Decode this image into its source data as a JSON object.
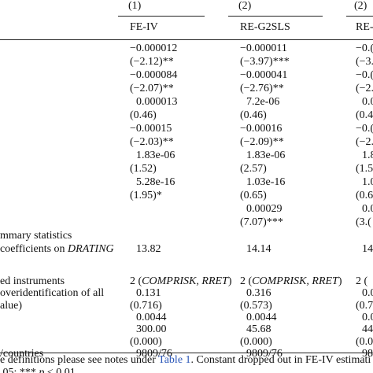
{
  "table": {
    "column_numbers": [
      "(1)",
      "(2)",
      "(2)"
    ],
    "column_names": [
      "FE-IV",
      "RE-G2SLS",
      "RE-"
    ],
    "rows": [
      [
        "",
        "−0.000012",
        "−0.000011",
        "−0.("
      ],
      [
        "",
        "(−2.12)**",
        "(−3.97)***",
        "(−3."
      ],
      [
        "",
        "−0.000084",
        "−0.000041",
        "−0.("
      ],
      [
        "",
        "(−2.07)**",
        "(−2.76)**",
        "(−2."
      ],
      [
        "",
        "0.000013",
        "7.2e-06",
        "0.0"
      ],
      [
        "",
        "(0.46)",
        "(0.46)",
        "(0.4"
      ],
      [
        "",
        "−0.00015",
        "−0.00016",
        "−0.("
      ],
      [
        "",
        "(−2.03)**",
        "(−2.09)**",
        "(−2."
      ],
      [
        "",
        "1.83e-06",
        "1.83e-06",
        "1.8"
      ],
      [
        "",
        "(1.52)",
        "(2.57)",
        "(1.5"
      ],
      [
        "",
        "5.28e-16",
        "1.03e-16",
        "1.0"
      ],
      [
        "",
        "(1.95)*",
        "(0.65)",
        "(0.6"
      ],
      [
        "",
        "",
        "0.00029",
        "0.0"
      ],
      [
        "",
        "",
        "(7.07)***",
        "(3.("
      ],
      [
        "mmary statistics",
        "",
        "",
        ""
      ],
      [
        [
          "coefficients on ",
          "DRATING"
        ],
        "13.82",
        "14.14",
        "14."
      ],
      [
        "ed instruments",
        [
          "2 (",
          "COMPRISK, RRET",
          ")"
        ],
        [
          "2 (",
          "COMPRISK, RRET",
          ")"
        ],
        "2 ("
      ],
      [
        " overidentification of all",
        "0.131",
        "0.316",
        "0.0"
      ],
      [
        "alue)",
        "(0.716)",
        "(0.573)",
        "(0.7"
      ],
      [
        "",
        "0.0044",
        "0.0044",
        "0.0"
      ],
      [
        "",
        "300.00",
        "45.68",
        "44."
      ],
      [
        "",
        "(0.000)",
        "(0.000)",
        "(0.0"
      ],
      [
        "/countries",
        "9809/76",
        "9809/76",
        "980"
      ]
    ]
  },
  "footnote": {
    "line1": [
      "e definitions please see notes under ",
      "Table 1",
      ". Constant dropped out in FE-IV estimati"
    ],
    "line2": [
      ".05; *** ",
      "p",
      " < 0.01."
    ]
  }
}
